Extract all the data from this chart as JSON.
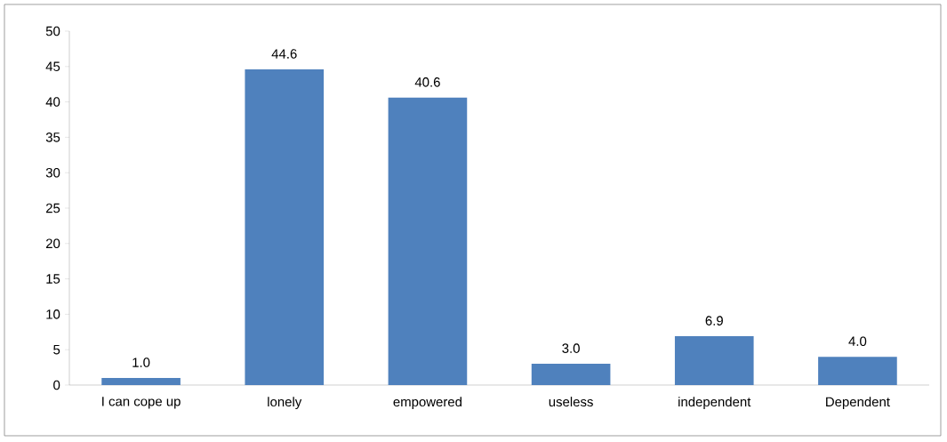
{
  "chart_data": {
    "type": "bar",
    "categories": [
      "I can cope up",
      "lonely",
      "empowered",
      "useless",
      "independent",
      "Dependent"
    ],
    "values": [
      1.0,
      44.6,
      40.6,
      3.0,
      6.9,
      4.0
    ],
    "value_labels": [
      "1.0",
      "44.6",
      "40.6",
      "3.0",
      "6.9",
      "4.0"
    ],
    "color": "#4f81bd",
    "ylim": [
      0,
      50
    ],
    "yticks": [
      0,
      5,
      10,
      15,
      20,
      25,
      30,
      35,
      40,
      45,
      50
    ],
    "grid": false
  }
}
